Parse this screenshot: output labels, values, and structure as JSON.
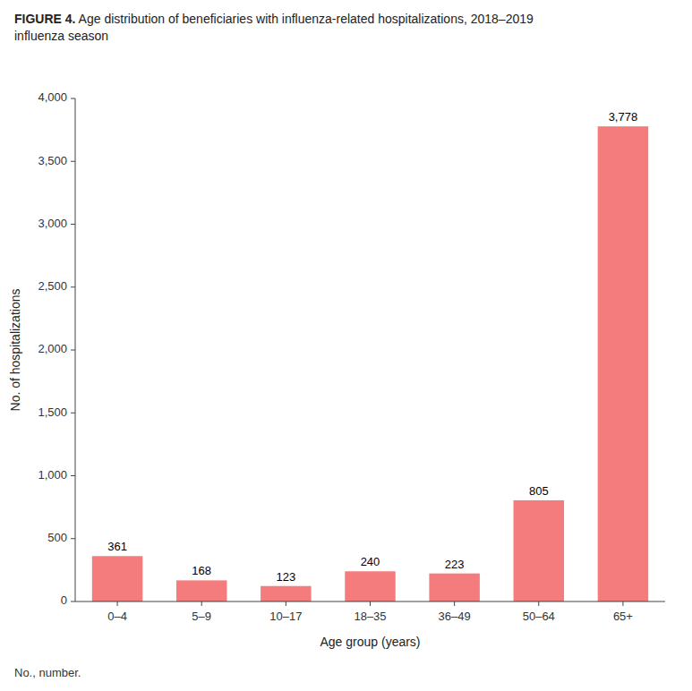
{
  "chart_data": {
    "type": "bar",
    "title": "FIGURE 4. Age distribution of beneficiaries with influenza-related hospitalizations, 2018–2019\ninfluenza season",
    "xlabel": "Age group (years)",
    "ylabel": "No. of hospitalizations",
    "categories": [
      "0–4",
      "5–9",
      "10–17",
      "18–35",
      "36–49",
      "50–64",
      "65+"
    ],
    "values": [
      361,
      168,
      123,
      240,
      223,
      805,
      3778
    ],
    "value_labels": [
      "361",
      "168",
      "123",
      "240",
      "223",
      "805",
      "3,778"
    ],
    "data_labels": true,
    "color": "#F47C7C",
    "ylim": [
      0,
      4000
    ],
    "yticks": [
      0,
      500,
      {
        "value": 1000,
        "label": "1,000"
      },
      {
        "value": 1500,
        "label": "1,500"
      },
      {
        "value": 2000,
        "label": "2,000"
      },
      {
        "value": 2500,
        "label": "2,500"
      },
      {
        "value": 3000,
        "label": "3,000"
      },
      {
        "value": 3500,
        "label": "3,500"
      },
      {
        "value": 4000,
        "label": "4,000"
      }
    ],
    "grid": false,
    "annotations": [
      "No., number."
    ]
  }
}
